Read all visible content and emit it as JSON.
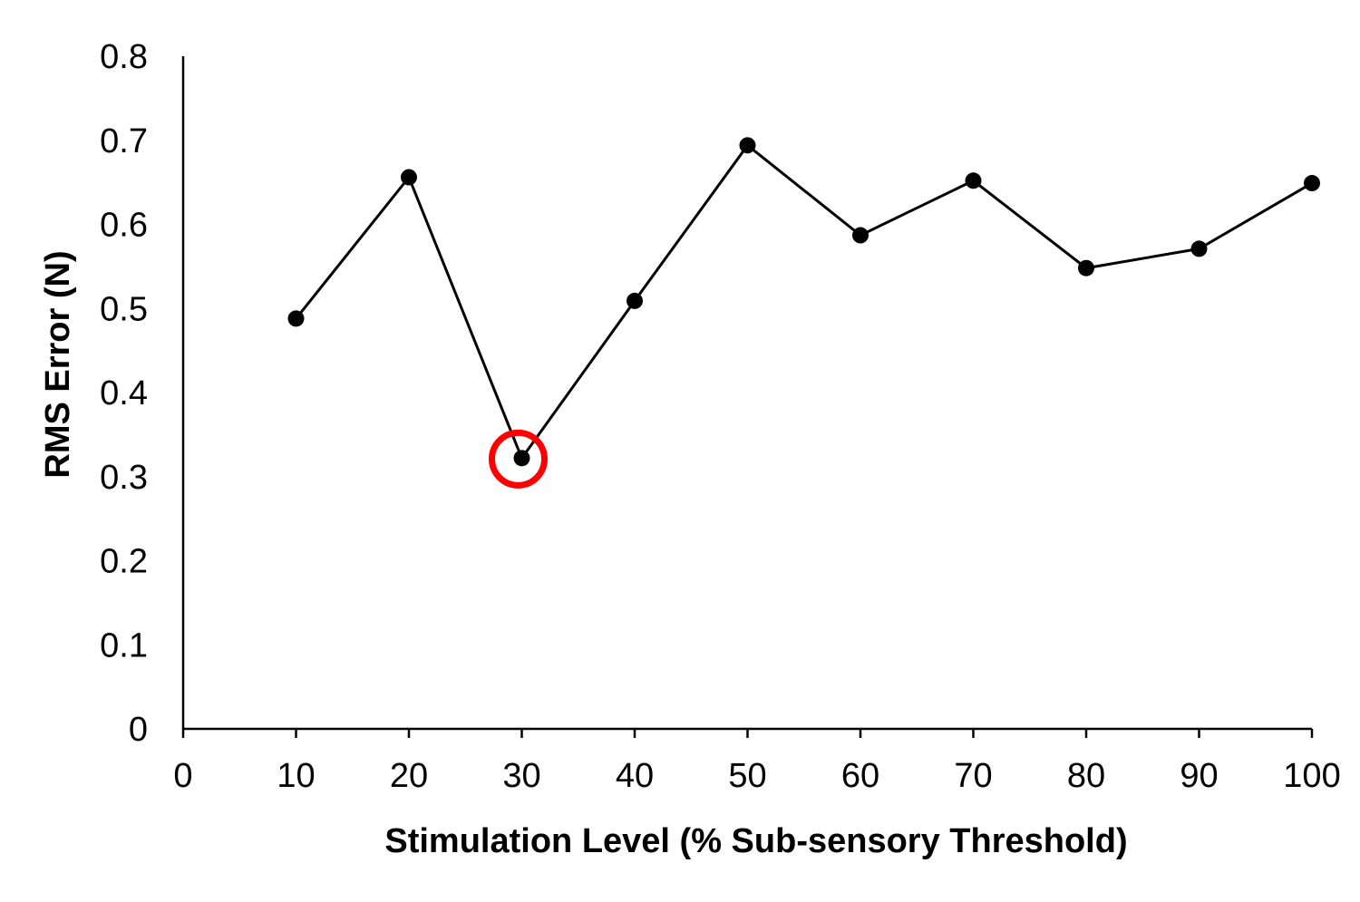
{
  "chart_data": {
    "type": "line",
    "title": "",
    "xlabel": "Stimulation Level (% Sub-sensory Threshold)",
    "ylabel": "RMS Error (N)",
    "xlim": [
      0,
      100
    ],
    "ylim": [
      0,
      0.8
    ],
    "x_ticks": [
      0,
      10,
      20,
      30,
      40,
      50,
      60,
      70,
      80,
      90,
      100
    ],
    "y_ticks": [
      0,
      0.1,
      0.2,
      0.3,
      0.4,
      0.5,
      0.6,
      0.7,
      0.8
    ],
    "grid": false,
    "legend": "none",
    "series": [
      {
        "x": [
          10,
          20,
          30,
          40,
          50,
          60,
          70,
          80,
          90,
          100
        ],
        "values": [
          0.488,
          0.656,
          0.322,
          0.509,
          0.694,
          0.587,
          0.652,
          0.548,
          0.571,
          0.649
        ],
        "color": "#000000",
        "marker": "circle"
      }
    ],
    "annotations": [
      {
        "type": "circle-highlight",
        "x": 30,
        "y": 0.322,
        "color": "#ff0000"
      }
    ]
  }
}
